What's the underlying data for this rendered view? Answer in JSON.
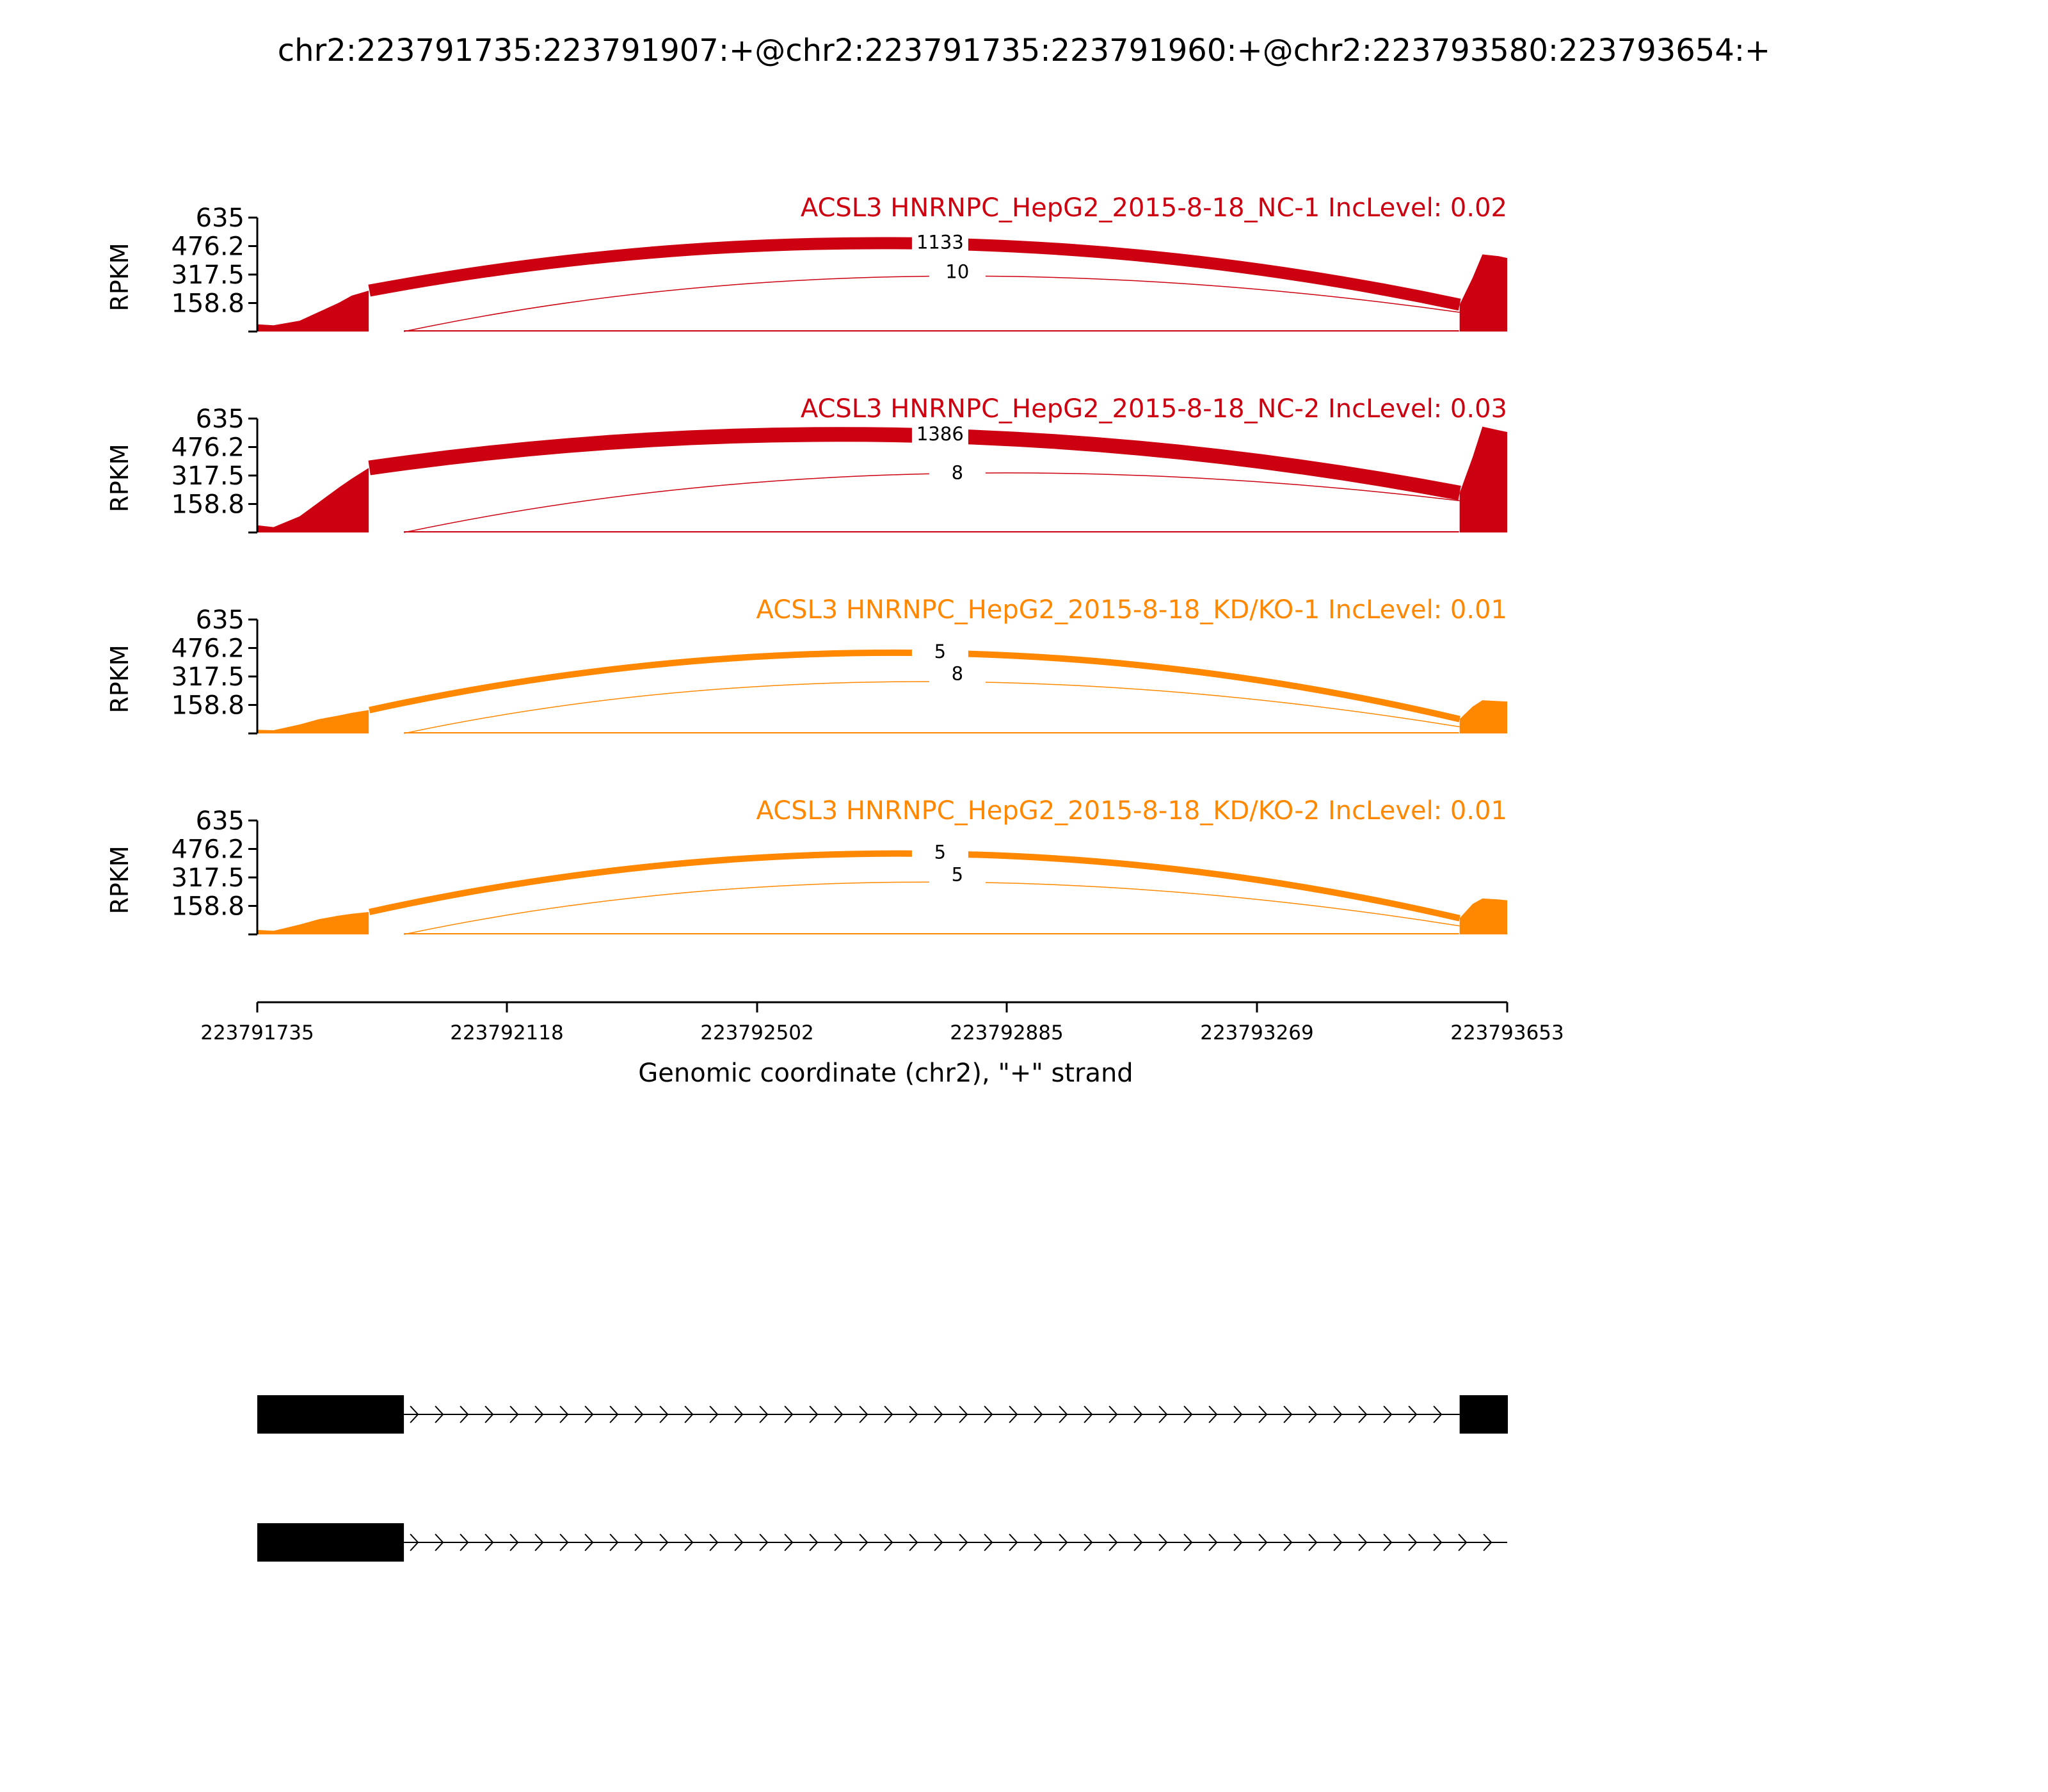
{
  "title": "chr2:223791735:223791907:+@chr2:223791735:223791960:+@chr2:223793580:223793654:+",
  "colors": {
    "nc": "#cc0011",
    "kd": "#ff8800",
    "axis": "#000000",
    "exon": "#000000"
  },
  "chart_data": {
    "type": "sashimi",
    "title": "chr2:223791735:223791907:+@chr2:223791735:223791960:+@chr2:223793580:223793654:+",
    "ylabel": "RPKM",
    "xlabel": "Genomic coordinate (chr2), \"+\" strand",
    "x_range": [
      223791735,
      223793653
    ],
    "y_range": [
      0,
      635
    ],
    "y_ticks": [
      158.8,
      317.5,
      476.2,
      635
    ],
    "y_tick_labels": [
      "158.8",
      "317.5",
      "476.2",
      "635"
    ],
    "x_ticks": [
      223791735,
      223792118,
      223792502,
      223792885,
      223793269,
      223793653
    ],
    "x_tick_labels": [
      "223791735",
      "223792118",
      "223792502",
      "223792885",
      "223793269",
      "223793653"
    ],
    "samples": [
      {
        "label": "ACSL3 HNRNPC_HepG2_2015-8-18_NC-1 IncLevel: 0.02",
        "group": "nc",
        "coverage": {
          "exon1": [
            [
              223791735,
              40
            ],
            [
              223791760,
              35
            ],
            [
              223791800,
              60
            ],
            [
              223791830,
              110
            ],
            [
              223791860,
              160
            ],
            [
              223791880,
              200
            ],
            [
              223791906,
              228
            ]
          ],
          "intron": [
            [
              223791907,
              228
            ],
            [
              223791960,
              4
            ],
            [
              223793579,
              4
            ]
          ],
          "exon3": [
            [
              223793580,
              150
            ],
            [
              223793600,
              300
            ],
            [
              223793615,
              430
            ],
            [
              223793640,
              420
            ],
            [
              223793653,
              410
            ]
          ]
        },
        "junctions": [
          {
            "start": 223791907,
            "end": 223793580,
            "count": 1133,
            "label": "1133",
            "side": "above"
          },
          {
            "start": 223791960,
            "end": 223793580,
            "count": 10,
            "label": "10",
            "side": "below"
          }
        ]
      },
      {
        "label": "ACSL3 HNRNPC_HepG2_2015-8-18_NC-2 IncLevel: 0.03",
        "group": "nc",
        "coverage": {
          "exon1": [
            [
              223791735,
              40
            ],
            [
              223791760,
              30
            ],
            [
              223791800,
              90
            ],
            [
              223791830,
              170
            ],
            [
              223791860,
              250
            ],
            [
              223791880,
              300
            ],
            [
              223791906,
              360
            ]
          ],
          "intron": [
            [
              223791907,
              360
            ],
            [
              223791960,
              4
            ],
            [
              223793579,
              4
            ]
          ],
          "exon3": [
            [
              223793580,
              220
            ],
            [
              223793600,
              420
            ],
            [
              223793615,
              590
            ],
            [
              223793640,
              570
            ],
            [
              223793653,
              560
            ]
          ]
        },
        "junctions": [
          {
            "start": 223791907,
            "end": 223793580,
            "count": 1386,
            "label": "1386",
            "side": "above"
          },
          {
            "start": 223791960,
            "end": 223793580,
            "count": 8,
            "label": "8",
            "side": "below"
          }
        ]
      },
      {
        "label": "ACSL3 HNRNPC_HepG2_2015-8-18_KD/KO-1 IncLevel: 0.01",
        "group": "kd",
        "coverage": {
          "exon1": [
            [
              223791735,
              20
            ],
            [
              223791760,
              18
            ],
            [
              223791800,
              50
            ],
            [
              223791830,
              80
            ],
            [
              223791860,
              100
            ],
            [
              223791880,
              115
            ],
            [
              223791906,
              130
            ]
          ],
          "intron": [
            [
              223791907,
              130
            ],
            [
              223791960,
              3
            ],
            [
              223793579,
              3
            ]
          ],
          "exon3": [
            [
              223793580,
              80
            ],
            [
              223793600,
              150
            ],
            [
              223793615,
              185
            ],
            [
              223793640,
              180
            ],
            [
              223793653,
              178
            ]
          ]
        },
        "junctions": [
          {
            "start": 223791907,
            "end": 223793580,
            "count": 5,
            "label": "5",
            "side": "above"
          },
          {
            "start": 223791960,
            "end": 223793580,
            "count": 8,
            "label": "8",
            "side": "below"
          }
        ]
      },
      {
        "label": "ACSL3 HNRNPC_HepG2_2015-8-18_KD/KO-2 IncLevel: 0.01",
        "group": "kd",
        "coverage": {
          "exon1": [
            [
              223791735,
              25
            ],
            [
              223791760,
              20
            ],
            [
              223791800,
              55
            ],
            [
              223791830,
              85
            ],
            [
              223791860,
              105
            ],
            [
              223791880,
              115
            ],
            [
              223791906,
              125
            ]
          ],
          "intron": [
            [
              223791907,
              125
            ],
            [
              223791960,
              3
            ],
            [
              223793579,
              3
            ]
          ],
          "exon3": [
            [
              223793580,
              90
            ],
            [
              223793600,
              170
            ],
            [
              223793615,
              200
            ],
            [
              223793640,
              195
            ],
            [
              223793653,
              190
            ]
          ]
        },
        "junctions": [
          {
            "start": 223791907,
            "end": 223793580,
            "count": 5,
            "label": "5",
            "side": "above"
          },
          {
            "start": 223791960,
            "end": 223793580,
            "count": 5,
            "label": "5",
            "side": "below"
          }
        ]
      }
    ],
    "isoforms": [
      {
        "exons": [
          [
            223791735,
            223791960
          ],
          [
            223793580,
            223793654
          ]
        ],
        "strand": "+"
      },
      {
        "exons": [
          [
            223791735,
            223791960
          ]
        ],
        "intron_end": 223793653,
        "strand": "+"
      }
    ]
  }
}
